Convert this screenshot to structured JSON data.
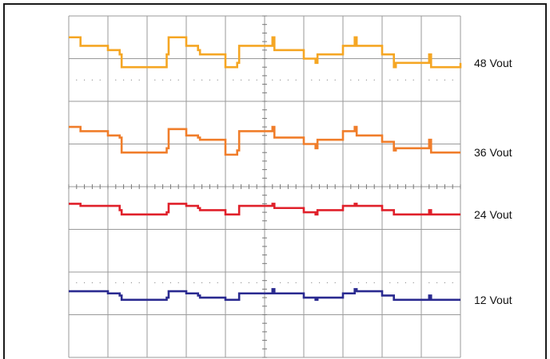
{
  "chart_data": {
    "type": "line",
    "title": "",
    "xlabel": "",
    "ylabel": "",
    "grid": true,
    "legend": "right",
    "divisions": {
      "x": 10,
      "y": 8
    },
    "x": [
      0,
      0.3,
      1.0,
      1.3,
      1.35,
      2.5,
      2.55,
      3.0,
      3.3,
      3.35,
      4.0,
      4.3,
      4.35,
      5.2,
      5.25,
      6.0,
      6.3,
      6.35,
      7.0,
      7.3,
      7.35,
      8.0,
      8.3,
      8.35,
      9.2,
      9.25,
      10.0
    ],
    "series": [
      {
        "name": "48 Vout",
        "color": "#f5a623",
        "values": [
          7.5,
          7.3,
          7.2,
          7.1,
          6.8,
          7.1,
          7.5,
          7.3,
          7.2,
          7.1,
          6.8,
          6.9,
          7.3,
          7.5,
          7.2,
          7.0,
          6.9,
          7.1,
          7.3,
          7.5,
          7.3,
          7.1,
          6.8,
          6.9,
          7.1,
          6.8,
          6.9
        ]
      },
      {
        "name": "36 Vout",
        "color": "#f07d2a",
        "values": [
          5.4,
          5.3,
          5.2,
          5.15,
          4.8,
          4.9,
          5.35,
          5.2,
          5.15,
          5.1,
          4.75,
          4.85,
          5.3,
          5.4,
          5.15,
          5.0,
          4.9,
          5.1,
          5.3,
          5.4,
          5.2,
          5.05,
          4.85,
          4.9,
          5.1,
          4.8,
          4.8
        ]
      },
      {
        "name": "24 Vout",
        "color": "#e0202a",
        "values": [
          3.6,
          3.55,
          3.55,
          3.45,
          3.35,
          3.4,
          3.6,
          3.55,
          3.5,
          3.45,
          3.35,
          3.35,
          3.55,
          3.6,
          3.5,
          3.4,
          3.35,
          3.45,
          3.55,
          3.6,
          3.55,
          3.45,
          3.35,
          3.35,
          3.45,
          3.35,
          3.35
        ]
      },
      {
        "name": "12 Vout",
        "color": "#2a2a90",
        "values": [
          1.55,
          1.55,
          1.5,
          1.45,
          1.35,
          1.4,
          1.55,
          1.5,
          1.45,
          1.4,
          1.35,
          1.35,
          1.5,
          1.6,
          1.5,
          1.4,
          1.35,
          1.4,
          1.5,
          1.6,
          1.55,
          1.45,
          1.35,
          1.35,
          1.45,
          1.35,
          1.35
        ]
      }
    ]
  }
}
